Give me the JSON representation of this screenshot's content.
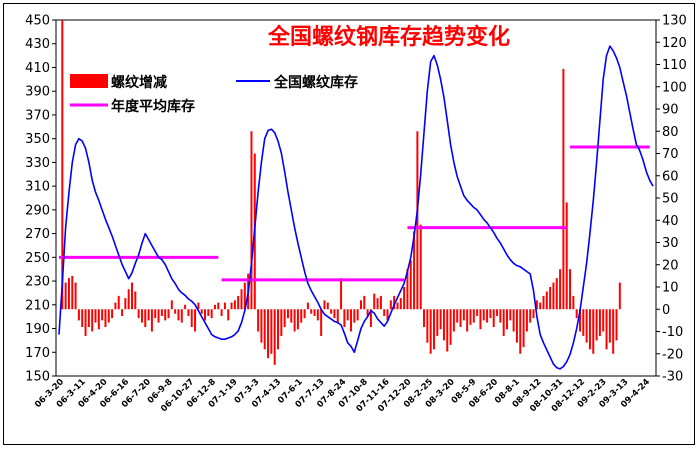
{
  "chart_data": {
    "type": "bar+line",
    "title": "全国螺纹钢库存趋势变化",
    "left_axis": {
      "ticks": [
        150,
        170,
        190,
        210,
        230,
        250,
        270,
        290,
        310,
        330,
        350,
        370,
        390,
        410,
        430,
        450
      ],
      "range": [
        150,
        450
      ]
    },
    "right_axis": {
      "ticks": [
        -30,
        -20,
        -10,
        0,
        10,
        20,
        30,
        40,
        50,
        60,
        70,
        80,
        90,
        100,
        110,
        120,
        130
      ],
      "range": [
        -30,
        130
      ]
    },
    "x_tick_labels": [
      "06-3-20",
      "06-3-11",
      "06-4-20",
      "06-6-16",
      "06-7-20",
      "06-9-8",
      "06-10-27",
      "06-12-8",
      "07-1-19",
      "07-3-3",
      "07-4-13",
      "07-6-1",
      "07-7-13",
      "07-8-24",
      "07-10-8",
      "07-11-16",
      "07-12-20",
      "08-2-25",
      "08-3-20",
      "08-5-9",
      "08-6-20",
      "08-8-1",
      "08-9-12",
      "08-10-31",
      "08-12-12",
      "09-2-23",
      "09-3-13",
      "09-4-24"
    ],
    "legend": {
      "bar": "螺纹增减",
      "line": "全国螺纹库存",
      "avg": "年度平均库存"
    },
    "colors": {
      "bar": "#ff0000",
      "line": "#0000ff",
      "avg": "#ff00ff",
      "title": "#ff0000"
    },
    "inventory_series": {
      "name": "全国螺纹库存",
      "axis": "left",
      "values": [
        185,
        228,
        275,
        305,
        330,
        345,
        350,
        348,
        342,
        330,
        315,
        305,
        298,
        290,
        282,
        275,
        268,
        260,
        252,
        244,
        238,
        232,
        237,
        245,
        252,
        262,
        270,
        265,
        260,
        255,
        250,
        248,
        244,
        238,
        232,
        228,
        223,
        220,
        218,
        215,
        213,
        210,
        205,
        200,
        195,
        190,
        185,
        183,
        182,
        181,
        181,
        182,
        183,
        185,
        188,
        195,
        205,
        220,
        245,
        275,
        305,
        330,
        350,
        357,
        358,
        355,
        348,
        338,
        322,
        305,
        290,
        275,
        262,
        250,
        238,
        228,
        222,
        217,
        212,
        206,
        202,
        200,
        198,
        196,
        195,
        193,
        186,
        178,
        175,
        170,
        180,
        190,
        196,
        200,
        205,
        203,
        198,
        195,
        192,
        196,
        203,
        210,
        216,
        222,
        228,
        238,
        250,
        268,
        290,
        320,
        355,
        390,
        415,
        420,
        412,
        400,
        385,
        365,
        345,
        330,
        318,
        310,
        302,
        298,
        295,
        292,
        290,
        286,
        282,
        279,
        275,
        271,
        266,
        262,
        257,
        252,
        248,
        245,
        243,
        242,
        240,
        238,
        236,
        222,
        200,
        185,
        178,
        172,
        166,
        160,
        157,
        156,
        158,
        162,
        168,
        178,
        190,
        205,
        225,
        245,
        270,
        298,
        330,
        365,
        400,
        420,
        428,
        424,
        418,
        410,
        398,
        386,
        372,
        358,
        345,
        340,
        332,
        322,
        315,
        310
      ]
    },
    "weekly_change_series": {
      "name": "螺纹增减",
      "axis": "right",
      "values": [
        0,
        130,
        12,
        14,
        15,
        12,
        -5,
        -8,
        -12,
        -8,
        -10,
        -6,
        -9,
        -5,
        -8,
        -6,
        -4,
        3,
        6,
        -3,
        5,
        9,
        12,
        8,
        -4,
        -6,
        -8,
        -5,
        -10,
        -4,
        -6,
        -3,
        -5,
        -4,
        4,
        -2,
        -5,
        -6,
        2,
        -3,
        -8,
        -10,
        3,
        -2,
        -5,
        -3,
        -4,
        2,
        3,
        -3,
        3,
        -5,
        3,
        4,
        6,
        9,
        12,
        16,
        80,
        70,
        -10,
        -15,
        -18,
        -22,
        -20,
        -25,
        -18,
        -12,
        -8,
        -4,
        -6,
        -10,
        -9,
        -6,
        -4,
        3,
        -2,
        -3,
        -5,
        -12,
        4,
        3,
        -2,
        -4,
        -6,
        14,
        -8,
        -5,
        -10,
        -6,
        -5,
        4,
        6,
        -3,
        -8,
        7,
        5,
        6,
        -3,
        -5,
        4,
        6,
        3,
        5,
        10,
        18,
        22,
        35,
        80,
        38,
        -8,
        -15,
        -20,
        -18,
        -12,
        -9,
        -14,
        -19,
        -16,
        -10,
        -6,
        -8,
        -5,
        -10,
        -7,
        -6,
        -3,
        -9,
        -5,
        -6,
        -4,
        -8,
        -3,
        -6,
        -12,
        -9,
        -5,
        -10,
        -15,
        -20,
        -17,
        -10,
        -6,
        -4,
        4,
        3,
        6,
        8,
        10,
        12,
        14,
        18,
        108,
        48,
        18,
        6,
        -4,
        -10,
        -12,
        -15,
        -18,
        -20,
        -14,
        -12,
        -10,
        -18,
        -15,
        -20,
        -14,
        12
      ]
    },
    "annual_average": [
      {
        "value": 250,
        "start_index": 0,
        "end_index": 48
      },
      {
        "value": 231,
        "start_index": 49,
        "end_index": 104
      },
      {
        "value": 275,
        "start_index": 105,
        "end_index": 153
      },
      {
        "value": 343,
        "start_index": 154,
        "end_index": 178
      }
    ]
  }
}
